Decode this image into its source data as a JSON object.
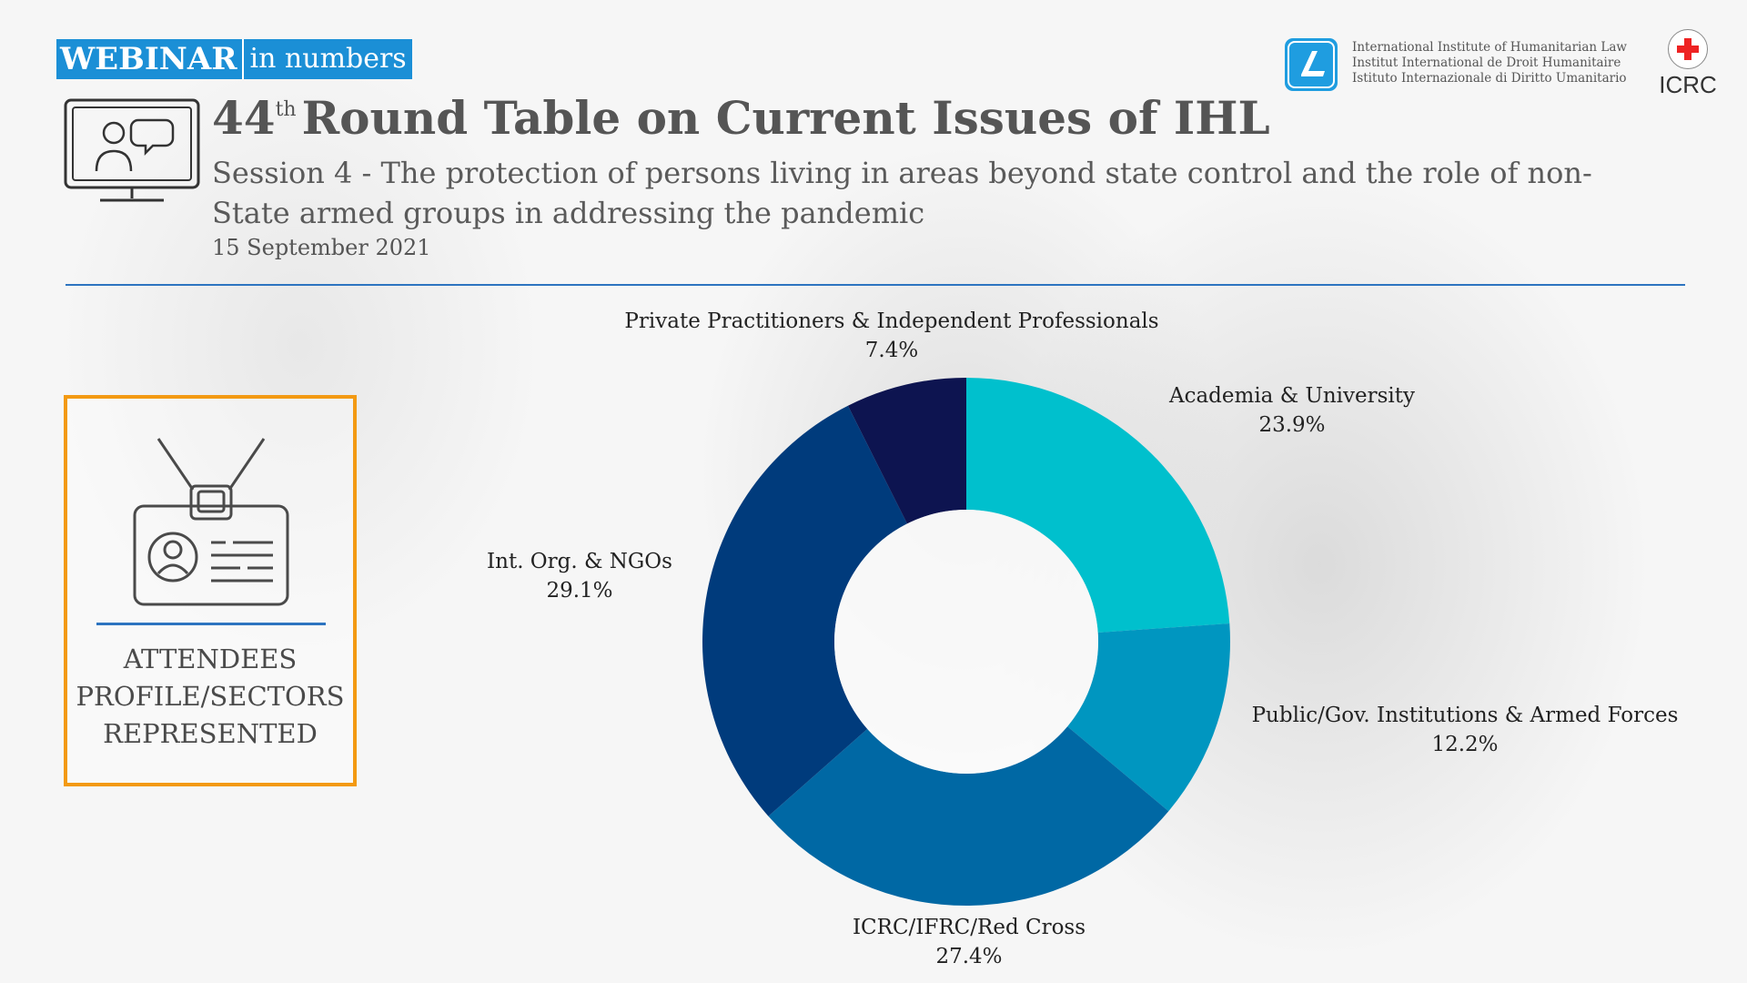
{
  "header": {
    "badge_main": "WEBINAR",
    "badge_sub": "in numbers",
    "title_number": "44",
    "title_suffix": "th",
    "title_rest": "Round Table on Current Issues of IHL",
    "subtitle": "Session 4 - The protection of persons living in areas beyond state control and the role of non-State armed groups in addressing the pandemic",
    "date": "15 September 2021"
  },
  "logos": {
    "iihl_lines": [
      "International Institute of Humanitarian Law",
      "Institut International de Droit Humanitaire",
      "Istituto Internazionale di Diritto Umanitario"
    ],
    "icrc_label": "ICRC"
  },
  "profile_box": {
    "line1": "ATTENDEES",
    "line2": "PROFILE/SECTORS",
    "line3": "REPRESENTED"
  },
  "colors": {
    "accent_blue": "#2d74c0",
    "orange": "#f39a13"
  },
  "chart_data": {
    "type": "pie",
    "donut": true,
    "title": "",
    "slices": [
      {
        "name": "Academia & University",
        "value": 23.9,
        "label": "23.9%",
        "color": "#00c0cd"
      },
      {
        "name": "Public/Gov. Institutions & Armed Forces",
        "value": 12.2,
        "label": "12.2%",
        "color": "#0096c0"
      },
      {
        "name": "ICRC/IFRC/Red Cross",
        "value": 27.4,
        "label": "27.4%",
        "color": "#0068a4"
      },
      {
        "name": "Int. Org. & NGOs",
        "value": 29.1,
        "label": "29.1%",
        "color": "#003b7c"
      },
      {
        "name": "Private Practitioners & Independent Professionals",
        "value": 7.4,
        "label": "7.4%",
        "color": "#0d1450"
      }
    ]
  }
}
